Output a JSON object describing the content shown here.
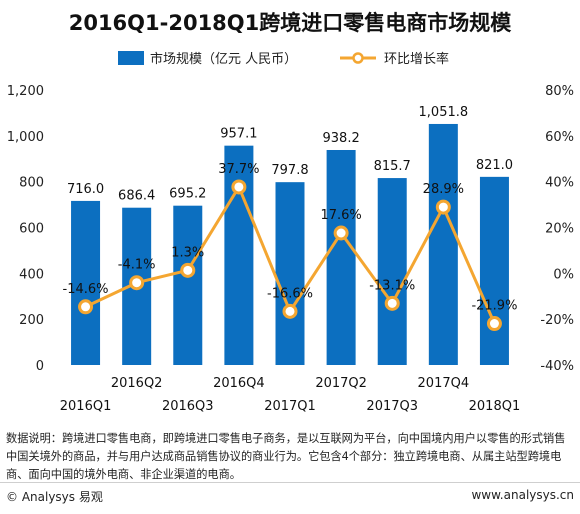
{
  "chart_data": {
    "type": "bar",
    "title": "2016Q1-2018Q1跨境进口零售电商市场规模",
    "categories": [
      "2016Q1",
      "2016Q2",
      "2016Q3",
      "2016Q4",
      "2017Q1",
      "2017Q2",
      "2017Q3",
      "2017Q4",
      "2018Q1"
    ],
    "series": [
      {
        "name": "市场规模（亿元 人民币）",
        "type": "bar",
        "axis": "left",
        "values": [
          716.0,
          686.4,
          695.2,
          957.1,
          797.8,
          938.2,
          815.7,
          1051.8,
          821.0
        ],
        "labels": [
          "716.0",
          "686.4",
          "695.2",
          "957.1",
          "797.8",
          "938.2",
          "815.7",
          "1,051.8",
          "821.0"
        ]
      },
      {
        "name": "环比增长率",
        "type": "line",
        "axis": "right",
        "values": [
          -14.6,
          -4.1,
          1.3,
          37.7,
          -16.6,
          17.6,
          -13.1,
          28.9,
          -21.9
        ],
        "labels": [
          "-14.6%",
          "-4.1%",
          "1.3%",
          "37.7%",
          "-16.6%",
          "17.6%",
          "-13.1%",
          "28.9%",
          "-21.9%"
        ]
      }
    ],
    "ylim_left": [
      0,
      1200
    ],
    "ylim_right": [
      -40,
      80
    ],
    "yticks_left": [
      "0",
      "200",
      "400",
      "600",
      "800",
      "1,000",
      "1,200"
    ],
    "yticks_right": [
      "-40%",
      "-20%",
      "0%",
      "20%",
      "40%",
      "60%",
      "80%"
    ],
    "legend_placement": "top-center",
    "grid": false,
    "colors": {
      "bar": "#0c6fc0",
      "line": "#f4a631",
      "marker_fill": "#ffffff"
    }
  },
  "note": "数据说明：跨境进口零售电商，即跨境进口零售电子商务，是以互联网为平台，向中国境内用户以零售的形式销售中国关境外的商品，并与用户达成商品销售协议的商业行为。它包含4个部分：独立跨境电商、从属主站型跨境电商、面向中国的境外电商、非企业渠道的电商。",
  "footer": {
    "left": "© Analysys 易观",
    "right": "www.analysys.cn"
  }
}
